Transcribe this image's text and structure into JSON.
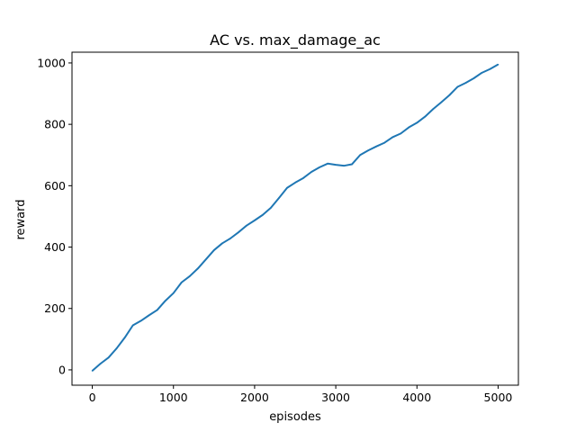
{
  "chart_data": {
    "type": "line",
    "title": "AC vs. max_damage_ac",
    "xlabel": "episodes",
    "ylabel": "reward",
    "xlim": [
      -250,
      5250
    ],
    "ylim": [
      -50,
      1035
    ],
    "xticks": [
      0,
      1000,
      2000,
      3000,
      4000,
      5000
    ],
    "yticks": [
      0,
      200,
      400,
      600,
      800,
      1000
    ],
    "grid": false,
    "series": [
      {
        "color": "#1f77b4",
        "x": [
          0,
          100,
          200,
          300,
          400,
          500,
          600,
          700,
          800,
          900,
          1000,
          1100,
          1200,
          1300,
          1400,
          1500,
          1600,
          1700,
          1800,
          1900,
          2000,
          2100,
          2200,
          2300,
          2400,
          2500,
          2600,
          2700,
          2800,
          2900,
          3000,
          3100,
          3200,
          3300,
          3400,
          3500,
          3600,
          3700,
          3800,
          3900,
          4000,
          4100,
          4200,
          4300,
          4400,
          4500,
          4600,
          4700,
          4800,
          4900,
          5000
        ],
        "values": [
          -3,
          20,
          40,
          70,
          105,
          145,
          160,
          178,
          195,
          225,
          250,
          285,
          305,
          330,
          360,
          390,
          412,
          428,
          448,
          470,
          487,
          505,
          528,
          560,
          593,
          610,
          625,
          645,
          660,
          672,
          668,
          665,
          670,
          700,
          715,
          728,
          740,
          758,
          770,
          790,
          805,
          825,
          850,
          872,
          895,
          922,
          935,
          950,
          968,
          980,
          995
        ]
      }
    ]
  }
}
